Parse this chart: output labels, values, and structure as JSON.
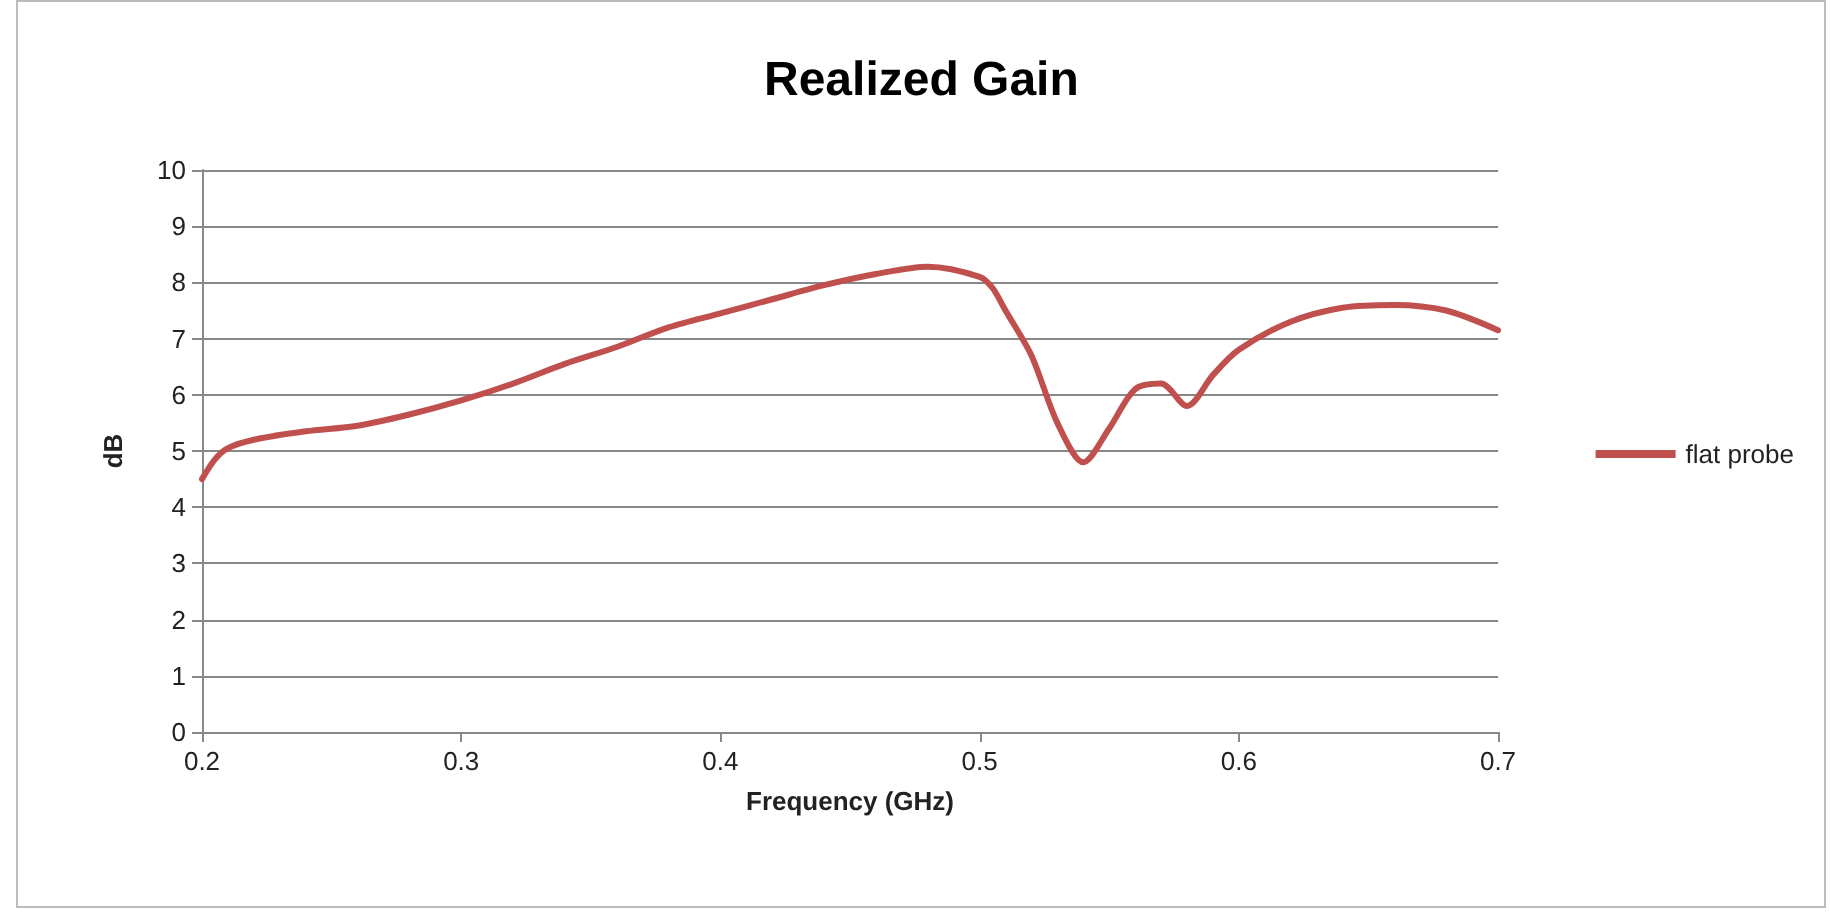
{
  "chart_data": {
    "type": "line",
    "title": "Realized Gain",
    "xlabel": "Frequency (GHz)",
    "ylabel": "dB",
    "xlim": [
      0.2,
      0.7
    ],
    "xticks": [
      0.2,
      0.3,
      0.4,
      0.5,
      0.6,
      0.7
    ],
    "ylim": [
      0,
      10
    ],
    "yticks": [
      0,
      1,
      2,
      3,
      4,
      5,
      6,
      7,
      8,
      9,
      10
    ],
    "grid": "y",
    "legend": "right",
    "marker": "none",
    "line_style": "solid",
    "series": [
      {
        "name": "flat probe",
        "color": "#c0504d",
        "x": [
          0.2,
          0.205,
          0.21,
          0.22,
          0.24,
          0.26,
          0.28,
          0.3,
          0.32,
          0.34,
          0.36,
          0.38,
          0.4,
          0.42,
          0.44,
          0.46,
          0.48,
          0.5,
          0.505,
          0.51,
          0.52,
          0.53,
          0.54,
          0.55,
          0.56,
          0.57,
          0.58,
          0.59,
          0.6,
          0.62,
          0.64,
          0.66,
          0.68,
          0.7
        ],
        "values": [
          4.5,
          4.85,
          5.05,
          5.2,
          5.35,
          5.45,
          5.65,
          5.9,
          6.2,
          6.55,
          6.85,
          7.2,
          7.45,
          7.7,
          7.95,
          8.15,
          8.28,
          8.1,
          7.9,
          7.5,
          6.7,
          5.5,
          4.8,
          5.4,
          6.1,
          6.2,
          5.8,
          6.35,
          6.8,
          7.3,
          7.55,
          7.6,
          7.5,
          7.15
        ]
      }
    ]
  }
}
